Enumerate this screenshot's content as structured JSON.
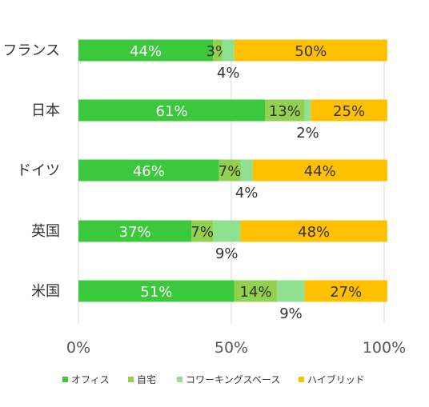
{
  "chart_data": {
    "type": "bar",
    "orientation": "horizontal",
    "stacked": true,
    "percent": true,
    "categories": [
      "フランス",
      "日本",
      "ドイツ",
      "英国",
      "米国"
    ],
    "series": [
      {
        "name": "オフィス",
        "values": [
          44,
          61,
          46,
          37,
          51
        ],
        "color": "#3cc83c",
        "label_color": "#ffffff"
      },
      {
        "name": "自宅",
        "values": [
          3,
          13,
          7,
          7,
          14
        ],
        "color": "#92d050",
        "label_color": "#333333"
      },
      {
        "name": "コワーキングスペース",
        "values": [
          4,
          2,
          4,
          9,
          9
        ],
        "color": "#8fe08f",
        "label_color": "#333333"
      },
      {
        "name": "ハイブリッド",
        "values": [
          50,
          25,
          44,
          48,
          27
        ],
        "color": "#ffc000",
        "label_color": "#333333"
      }
    ],
    "data_labels": [
      [
        "44%",
        "3%",
        "4%",
        "50%"
      ],
      [
        "61%",
        "13%",
        "2%",
        "25%"
      ],
      [
        "46%",
        "7%",
        "4%",
        "44%"
      ],
      [
        "37%",
        "7%",
        "9%",
        "48%"
      ],
      [
        "51%",
        "14%",
        "9%",
        "27%"
      ]
    ],
    "x_ticks": [
      "0%",
      "50%",
      "100%"
    ],
    "xlim": [
      0,
      100
    ],
    "grid": true,
    "legend_position": "bottom",
    "title": "",
    "xlabel": "",
    "ylabel": ""
  }
}
